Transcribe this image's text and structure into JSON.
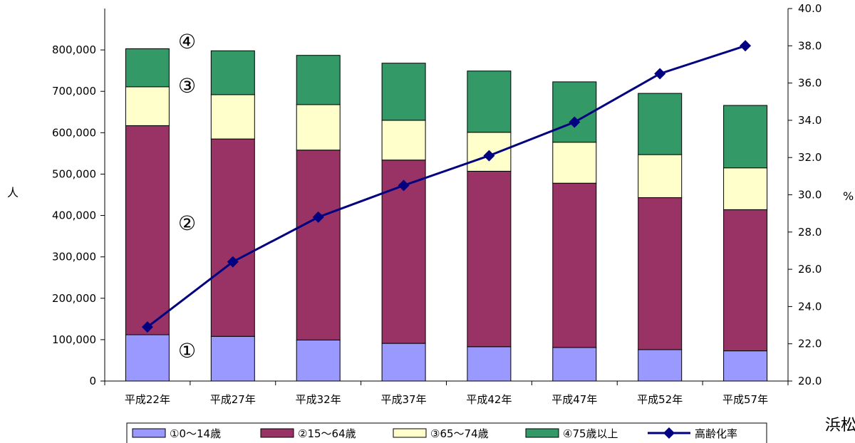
{
  "chart_data": {
    "type": "bar",
    "stacked": true,
    "categories": [
      "平成22年",
      "平成27年",
      "平成32年",
      "平成37年",
      "平成42年",
      "平成47年",
      "平成52年",
      "平成57年"
    ],
    "series": [
      {
        "name": "①0～14歳",
        "color": "#9999ff",
        "values": [
          112000,
          108000,
          99000,
          91000,
          83000,
          81000,
          76000,
          73000
        ]
      },
      {
        "name": "②15～64歳",
        "color": "#993366",
        "values": [
          505000,
          477000,
          459000,
          443000,
          424000,
          397000,
          367000,
          341000
        ]
      },
      {
        "name": "③65～74歳",
        "color": "#ffffcc",
        "values": [
          94000,
          107000,
          110000,
          96000,
          94000,
          99000,
          104000,
          101000
        ]
      },
      {
        "name": "④75歳以上",
        "color": "#339966",
        "values": [
          92000,
          106000,
          119000,
          138000,
          148000,
          146000,
          148000,
          151000
        ]
      }
    ],
    "line_series": {
      "name": "高齢化率",
      "color": "#000080",
      "axis": "right",
      "values": [
        22.9,
        26.4,
        28.8,
        30.5,
        32.1,
        33.9,
        36.5,
        38.0
      ]
    },
    "ylim": [
      0,
      900000
    ],
    "y_ticks": [
      "0",
      "100,000",
      "200,000",
      "300,000",
      "400,000",
      "500,000",
      "600,000",
      "700,000",
      "800,000"
    ],
    "y2lim": [
      20.0,
      40.0
    ],
    "y2_ticks": [
      "20.0",
      "22.0",
      "24.0",
      "26.0",
      "28.0",
      "30.0",
      "32.0",
      "34.0",
      "36.0",
      "38.0",
      "40.0"
    ],
    "ylabel": "人",
    "y2label": "%",
    "legend_position": "bottom",
    "grid": false,
    "annotations": [
      "①",
      "②",
      "③",
      "④"
    ]
  },
  "credit": "浜松"
}
